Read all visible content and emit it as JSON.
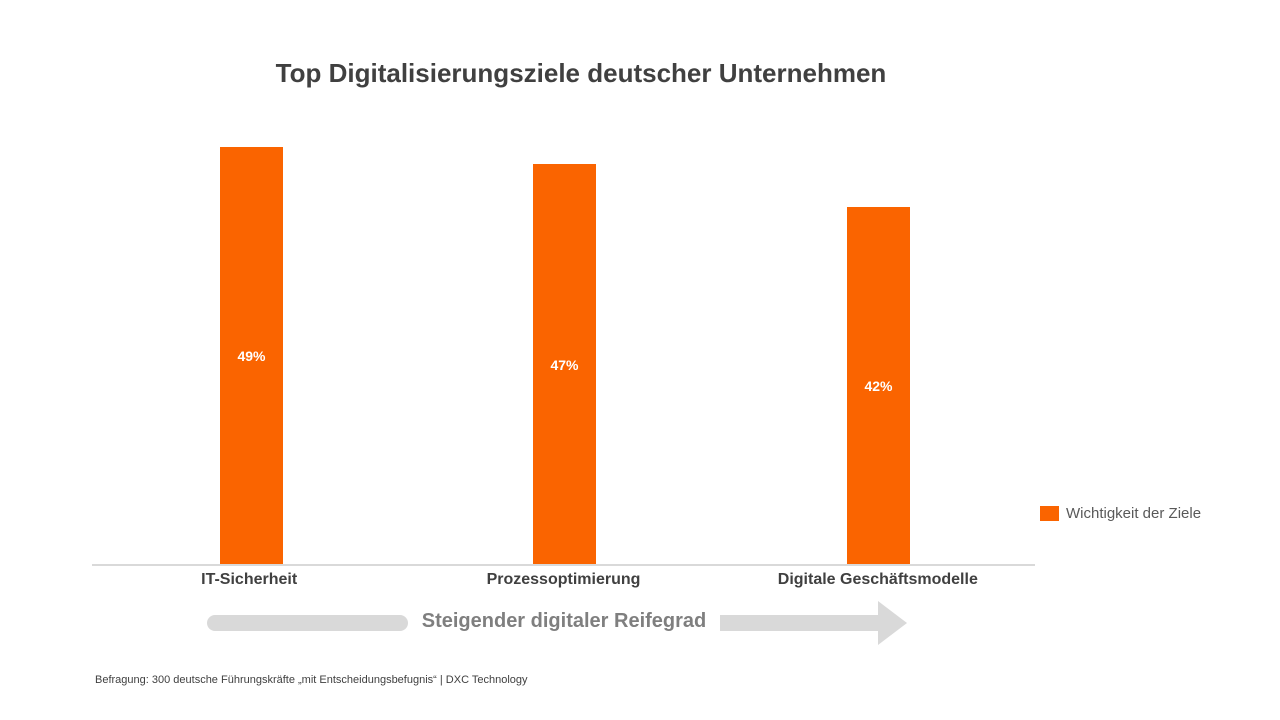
{
  "chart_data": {
    "type": "bar",
    "title": "Top Digitalisierungsziele deutscher Unternehmen",
    "categories": [
      "IT-Sicherheit",
      "Prozessoptimierung",
      "Digitale Geschäftsmodelle"
    ],
    "series": [
      {
        "name": "Wichtigkeit der Ziele",
        "values": [
          49,
          47,
          42
        ]
      }
    ],
    "data_labels": [
      "49%",
      "47%",
      "42%"
    ],
    "xlabel": "",
    "ylabel": "",
    "ylim": [
      0,
      55
    ],
    "grid": false,
    "legend_position": "right",
    "bar_color": "#fa6400",
    "data_label_position": "inside-center"
  },
  "legend": {
    "label": "Wichtigkeit der Ziele",
    "swatch_color": "#fa6400"
  },
  "arrow": {
    "label": "Steigender digitaler Reifegrad",
    "color": "#d9d9d9"
  },
  "footnote": "Befragung: 300 deutsche Führungskräfte „mit Entscheidungsbefugnis“ | DXC Technology",
  "colors": {
    "accent_orange": "#fa6400",
    "title_text": "#404040",
    "axis_line": "#d9d9d9",
    "arrow_gray": "#d9d9d9",
    "arrow_text": "#7f7f7f",
    "legend_text": "#595959",
    "bar_label_text": "#ffffff"
  }
}
